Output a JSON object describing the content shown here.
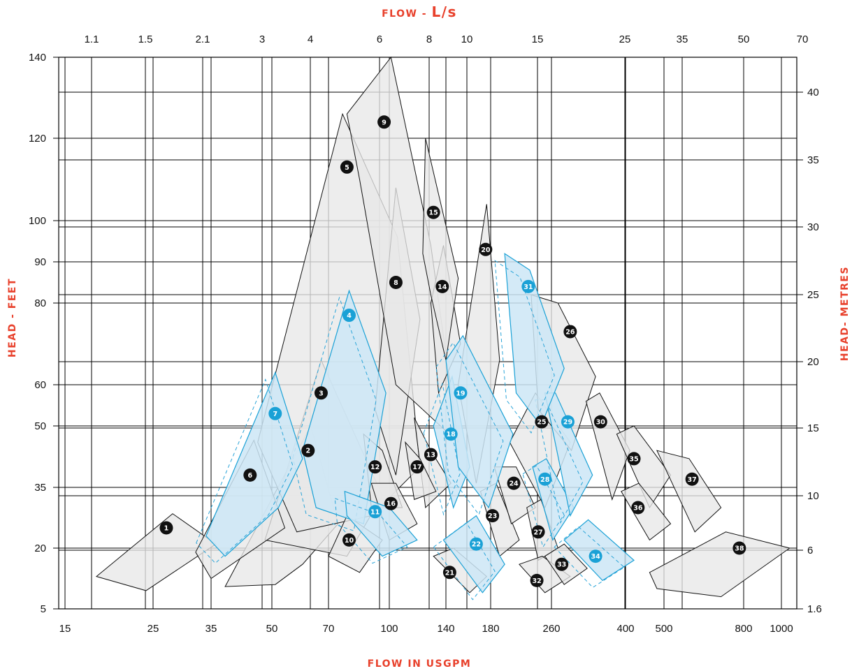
{
  "chart_data": {
    "type": "area",
    "title": "",
    "axes": {
      "x_bottom": {
        "label": "FLOW IN USGPM",
        "scale": "log",
        "ticks": [
          "15",
          "25",
          "35",
          "50",
          "70",
          "100",
          "140",
          "180",
          "260",
          "400",
          "500",
          "800",
          "1000"
        ],
        "range": [
          14.5,
          1050
        ]
      },
      "x_top": {
        "label_prefix": "FLOW - ",
        "label_unit": "L/s",
        "scale": "log",
        "ticks": [
          "1.1",
          "1.5",
          "2.1",
          "3",
          "4",
          "6",
          "8",
          "10",
          "15",
          "25",
          "35",
          "50",
          "70"
        ]
      },
      "y_left": {
        "label": "HEAD - FEET",
        "ticks": [
          "5",
          "20",
          "35",
          "50",
          "60",
          "80",
          "90",
          "100",
          "120",
          "140"
        ]
      },
      "y_right": {
        "label": "HEAD- METRES",
        "ticks": [
          "1.6",
          "6",
          "10",
          "15",
          "20",
          "25",
          "30",
          "35",
          "40"
        ]
      }
    },
    "legend": "none",
    "colors": {
      "range_fill": "#e8e8e8",
      "range_stroke": "#111111",
      "highlight_fill": "#cde6f6",
      "highlight_stroke": "#1aa1d6",
      "badge_dark": "#111111",
      "badge_blue": "#1aa1d6",
      "axis_title": "#e8412c"
    },
    "ranges": [
      {
        "id": "1",
        "highlight": false,
        "label_at": [
          27,
          25
        ],
        "polygon": [
          [
            18,
            13
          ],
          [
            28,
            28.5
          ],
          [
            36,
            21
          ],
          [
            24,
            9.5
          ]
        ]
      },
      {
        "id": "2",
        "highlight": false,
        "label_at": [
          62,
          44
        ],
        "polygon": [
          [
            38,
            10.5
          ],
          [
            63,
            50
          ],
          [
            74,
            26
          ],
          [
            60,
            16
          ],
          [
            51,
            11
          ]
        ]
      },
      {
        "id": "3",
        "highlight": false,
        "label_at": [
          67,
          58
        ],
        "polygon": [
          [
            48,
            22
          ],
          [
            67,
            66
          ],
          [
            96,
            33
          ],
          [
            78,
            18
          ]
        ]
      },
      {
        "id": "4",
        "highlight": true,
        "label_at": [
          79,
          77
        ],
        "polygon": [
          [
            60,
            44
          ],
          [
            79,
            83
          ],
          [
            98,
            58
          ],
          [
            86,
            26
          ],
          [
            65,
            30
          ]
        ]
      },
      {
        "id": "5",
        "highlight": false,
        "label_at": [
          78,
          113
        ],
        "polygon": [
          [
            46,
            46
          ],
          [
            76,
            126
          ],
          [
            105,
            96
          ],
          [
            120,
            40
          ],
          [
            90,
            28
          ],
          [
            58,
            24
          ]
        ]
      },
      {
        "id": "6",
        "highlight": false,
        "label_at": [
          44,
          38
        ],
        "polygon": [
          [
            32,
            19
          ],
          [
            45,
            46.5
          ],
          [
            54,
            25
          ],
          [
            35,
            12.5
          ]
        ]
      },
      {
        "id": "7",
        "highlight": true,
        "label_at": [
          51,
          53
        ],
        "polygon": [
          [
            34,
            23
          ],
          [
            51,
            63
          ],
          [
            60,
            42
          ],
          [
            52,
            30
          ],
          [
            38,
            18
          ]
        ]
      },
      {
        "id": "8",
        "highlight": false,
        "label_at": [
          104,
          85
        ],
        "polygon": [
          [
            92,
            54
          ],
          [
            104,
            108
          ],
          [
            120,
            76
          ],
          [
            104,
            38
          ]
        ]
      },
      {
        "id": "9",
        "highlight": false,
        "label_at": [
          97,
          124
        ],
        "polygon": [
          [
            78,
            126
          ],
          [
            101,
            140
          ],
          [
            128,
            94
          ],
          [
            150,
            46
          ],
          [
            104,
            60
          ],
          [
            84,
            110
          ]
        ]
      },
      {
        "id": "10",
        "highlight": false,
        "label_at": [
          79,
          22
        ],
        "polygon": [
          [
            70,
            18
          ],
          [
            78,
            28
          ],
          [
            96,
            22
          ],
          [
            84,
            14
          ]
        ]
      },
      {
        "id": "11",
        "highlight": true,
        "label_at": [
          92,
          29
        ],
        "polygon": [
          [
            77,
            34
          ],
          [
            100,
            30
          ],
          [
            118,
            22
          ],
          [
            96,
            18
          ],
          [
            78,
            28
          ]
        ]
      },
      {
        "id": "12",
        "highlight": false,
        "label_at": [
          92,
          40
        ],
        "polygon": [
          [
            86,
            48
          ],
          [
            96,
            44
          ],
          [
            108,
            30
          ],
          [
            90,
            30
          ]
        ]
      },
      {
        "id": "13",
        "highlight": false,
        "label_at": [
          128,
          43
        ],
        "polygon": [
          [
            116,
            52
          ],
          [
            128,
            44
          ],
          [
            144,
            36
          ],
          [
            124,
            30
          ]
        ]
      },
      {
        "id": "14",
        "highlight": false,
        "label_at": [
          137,
          84
        ],
        "polygon": [
          [
            128,
            80
          ],
          [
            138,
            94
          ],
          [
            152,
            70
          ],
          [
            134,
            58
          ]
        ]
      },
      {
        "id": "15",
        "highlight": false,
        "label_at": [
          130,
          102
        ],
        "polygon": [
          [
            122,
            92
          ],
          [
            124,
            120
          ],
          [
            150,
            86
          ],
          [
            140,
            66
          ],
          [
            128,
            82
          ]
        ]
      },
      {
        "id": "16",
        "highlight": false,
        "label_at": [
          101,
          31
        ],
        "polygon": [
          [
            90,
            36
          ],
          [
            104,
            36
          ],
          [
            118,
            26
          ],
          [
            100,
            22
          ]
        ]
      },
      {
        "id": "17",
        "highlight": false,
        "label_at": [
          118,
          40
        ],
        "polygon": [
          [
            110,
            46
          ],
          [
            120,
            42
          ],
          [
            132,
            34
          ],
          [
            116,
            32
          ]
        ]
      },
      {
        "id": "18",
        "highlight": true,
        "label_at": [
          144,
          48
        ],
        "polygon": [
          [
            130,
            50
          ],
          [
            145,
            62
          ],
          [
            160,
            40
          ],
          [
            146,
            30
          ]
        ]
      },
      {
        "id": "19",
        "highlight": true,
        "label_at": [
          152,
          58
        ],
        "polygon": [
          [
            140,
            66
          ],
          [
            154,
            72
          ],
          [
            206,
            48
          ],
          [
            178,
            30
          ],
          [
            150,
            40
          ]
        ]
      },
      {
        "id": "20",
        "highlight": false,
        "label_at": [
          175,
          93
        ],
        "polygon": [
          [
            150,
            60
          ],
          [
            176,
            104
          ],
          [
            190,
            66
          ],
          [
            166,
            36
          ]
        ]
      },
      {
        "id": "21",
        "highlight": false,
        "label_at": [
          143,
          14
        ],
        "polygon": [
          [
            130,
            18
          ],
          [
            146,
            20
          ],
          [
            176,
            13
          ],
          [
            160,
            9
          ]
        ]
      },
      {
        "id": "22",
        "highlight": true,
        "label_at": [
          166,
          21
        ],
        "polygon": [
          [
            138,
            22
          ],
          [
            166,
            28
          ],
          [
            196,
            16
          ],
          [
            172,
            9
          ]
        ]
      },
      {
        "id": "23",
        "highlight": false,
        "label_at": [
          182,
          28
        ],
        "polygon": [
          [
            170,
            34
          ],
          [
            186,
            36
          ],
          [
            214,
            22
          ],
          [
            190,
            18
          ]
        ]
      },
      {
        "id": "24",
        "highlight": false,
        "label_at": [
          207,
          36
        ],
        "polygon": [
          [
            184,
            40
          ],
          [
            210,
            40
          ],
          [
            236,
            30
          ],
          [
            204,
            26
          ]
        ]
      },
      {
        "id": "25",
        "highlight": false,
        "label_at": [
          245,
          51
        ],
        "polygon": [
          [
            202,
            46
          ],
          [
            236,
            58
          ],
          [
            290,
            46
          ],
          [
            250,
            30
          ]
        ]
      },
      {
        "id": "26",
        "highlight": false,
        "label_at": [
          290,
          73
        ],
        "polygon": [
          [
            230,
            82
          ],
          [
            270,
            80
          ],
          [
            336,
            62
          ],
          [
            292,
            44
          ],
          [
            240,
            54
          ]
        ]
      },
      {
        "id": "27",
        "highlight": false,
        "label_at": [
          240,
          24
        ],
        "polygon": [
          [
            224,
            30
          ],
          [
            244,
            32
          ],
          [
            270,
            20
          ],
          [
            240,
            17
          ]
        ]
      },
      {
        "id": "28",
        "highlight": true,
        "label_at": [
          250,
          37
        ],
        "polygon": [
          [
            232,
            40
          ],
          [
            252,
            42
          ],
          [
            296,
            30
          ],
          [
            262,
            22
          ]
        ]
      },
      {
        "id": "29",
        "highlight": true,
        "label_at": [
          286,
          51
        ],
        "polygon": [
          [
            250,
            58
          ],
          [
            266,
            58
          ],
          [
            330,
            38
          ],
          [
            290,
            28
          ]
        ]
      },
      {
        "id": "30",
        "highlight": false,
        "label_at": [
          346,
          51
        ],
        "polygon": [
          [
            318,
            56
          ],
          [
            344,
            58
          ],
          [
            410,
            44
          ],
          [
            370,
            32
          ]
        ]
      },
      {
        "id": "31",
        "highlight": true,
        "label_at": [
          226,
          84
        ],
        "polygon": [
          [
            196,
            92
          ],
          [
            228,
            88
          ],
          [
            280,
            64
          ],
          [
            244,
            50
          ],
          [
            210,
            58
          ]
        ]
      },
      {
        "id": "32",
        "highlight": false,
        "label_at": [
          238,
          12
        ],
        "polygon": [
          [
            214,
            16
          ],
          [
            246,
            18
          ],
          [
            290,
            13
          ],
          [
            250,
            9
          ]
        ]
      },
      {
        "id": "33",
        "highlight": false,
        "label_at": [
          276,
          16
        ],
        "polygon": [
          [
            250,
            18
          ],
          [
            280,
            21
          ],
          [
            320,
            15
          ],
          [
            280,
            11
          ]
        ]
      },
      {
        "id": "34",
        "highlight": true,
        "label_at": [
          336,
          18
        ],
        "polygon": [
          [
            280,
            22
          ],
          [
            322,
            27
          ],
          [
            420,
            17
          ],
          [
            350,
            12
          ]
        ]
      },
      {
        "id": "35",
        "highlight": false,
        "label_at": [
          420,
          42
        ],
        "polygon": [
          [
            380,
            48
          ],
          [
            420,
            50
          ],
          [
            520,
            38
          ],
          [
            460,
            30
          ]
        ]
      },
      {
        "id": "36",
        "highlight": false,
        "label_at": [
          430,
          30
        ],
        "polygon": [
          [
            390,
            34
          ],
          [
            432,
            36
          ],
          [
            520,
            26
          ],
          [
            460,
            22
          ]
        ]
      },
      {
        "id": "37",
        "highlight": false,
        "label_at": [
          590,
          37
        ],
        "polygon": [
          [
            480,
            44
          ],
          [
            580,
            42
          ],
          [
            700,
            30
          ],
          [
            600,
            24
          ]
        ]
      },
      {
        "id": "38",
        "highlight": false,
        "label_at": [
          780,
          20
        ],
        "polygon": [
          [
            460,
            14
          ],
          [
            720,
            24
          ],
          [
            1050,
            20
          ],
          [
            700,
            8
          ],
          [
            480,
            10
          ]
        ]
      }
    ]
  }
}
